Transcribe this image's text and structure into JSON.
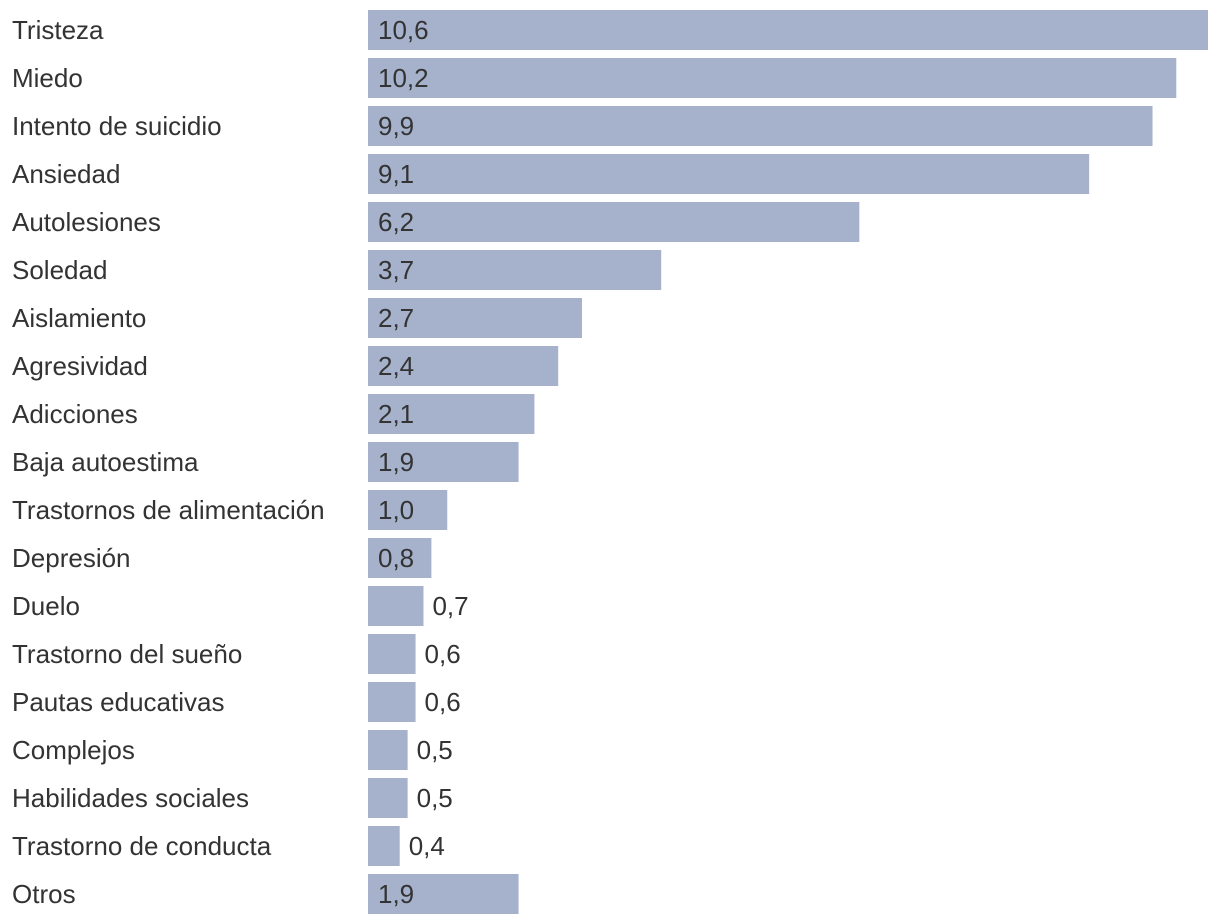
{
  "chart_data": {
    "type": "bar",
    "orientation": "horizontal",
    "categories": [
      "Tristeza",
      "Miedo",
      "Intento de suicidio",
      "Ansiedad",
      "Autolesiones",
      "Soledad",
      "Aislamiento",
      "Agresividad",
      "Adicciones",
      "Baja autoestima",
      "Trastornos de alimentación",
      "Depresión",
      "Duelo",
      "Trastorno del sueño",
      "Pautas educativas",
      "Complejos",
      "Habilidades sociales",
      "Trastorno de conducta",
      "Otros"
    ],
    "values": [
      10.6,
      10.2,
      9.9,
      9.1,
      6.2,
      3.7,
      2.7,
      2.4,
      2.1,
      1.9,
      1.0,
      0.8,
      0.7,
      0.6,
      0.6,
      0.5,
      0.5,
      0.4,
      1.9
    ],
    "value_labels": [
      "10,6",
      "10,2",
      "9,9",
      "9,1",
      "6,2",
      "3,7",
      "2,7",
      "2,4",
      "2,1",
      "1,9",
      "1,0",
      "0,8",
      "0,7",
      "0,6",
      "0,6",
      "0,5",
      "0,5",
      "0,4",
      "1,9"
    ],
    "xlim": [
      0,
      10.6
    ],
    "grid": false,
    "legend": "none",
    "colors": {
      "bar": "#a6b2cb",
      "text": "#333333"
    }
  }
}
